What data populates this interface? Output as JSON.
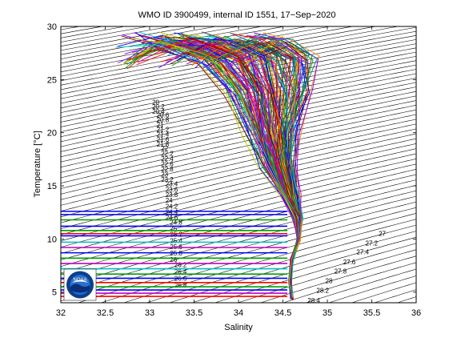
{
  "chart_data": {
    "type": "line",
    "title": "WMO ID 3900499, internal ID 1551, 17−Sep−2020",
    "xlabel": "Salinity",
    "ylabel": "Temperature [°C]",
    "xlim": [
      32,
      36
    ],
    "ylim": [
      4,
      30
    ],
    "xticks": [
      "32",
      "32.5",
      "33",
      "33.5",
      "34",
      "34.5",
      "35",
      "35.5",
      "36"
    ],
    "yticks": [
      "5",
      "10",
      "15",
      "20",
      "25",
      "30"
    ],
    "grid": false,
    "legend": "none",
    "contour_labels": [
      "20",
      "20.2",
      "20.4",
      "20.6",
      "20.8",
      "21",
      "21.2",
      "21.4",
      "21.6",
      "21.8",
      "22",
      "22.2",
      "22.4",
      "22.6",
      "22.8",
      "23",
      "23.2",
      "23.4",
      "23.6",
      "23.8",
      "24",
      "24.2",
      "24.4",
      "24.6",
      "24.8",
      "25",
      "25.2",
      "25.4",
      "25.6",
      "25.8",
      "26",
      "26.2",
      "26.4",
      "26.6",
      "26.8",
      "27",
      "27.2",
      "27.4",
      "27.6",
      "27.8",
      "28",
      "28.2",
      "28.4"
    ],
    "series_summary": {
      "profile_count": 150,
      "profile_colors": [
        "#0000ff",
        "#00a000",
        "#ff0000",
        "#00c0c0",
        "#c000c0",
        "#c0c000",
        "#404040",
        "#ff8000",
        "#8000ff",
        "#008080",
        "#800000"
      ],
      "surface_salinity_range": [
        32.8,
        35.3
      ],
      "surface_temperature_range": [
        25,
        29.5
      ],
      "core_profile": [
        {
          "s": 33.2,
          "t": 29.0
        },
        {
          "s": 33.6,
          "t": 28.5
        },
        {
          "s": 34.0,
          "t": 27.0
        },
        {
          "s": 34.2,
          "t": 24.0
        },
        {
          "s": 34.3,
          "t": 20.0
        },
        {
          "s": 34.4,
          "t": 17.0
        },
        {
          "s": 34.55,
          "t": 14.0
        },
        {
          "s": 34.65,
          "t": 12.0
        },
        {
          "s": 34.68,
          "t": 10.0
        },
        {
          "s": 34.6,
          "t": 8.0
        },
        {
          "s": 34.58,
          "t": 6.0
        },
        {
          "s": 34.6,
          "t": 4.5
        }
      ],
      "horizontal_lines": [
        {
          "t": 12.6,
          "color": "#0000ff"
        },
        {
          "t": 12.3,
          "color": "#0000ff"
        },
        {
          "t": 11.8,
          "color": "#00a000"
        },
        {
          "t": 11.2,
          "color": "#0000ff"
        },
        {
          "t": 10.8,
          "color": "#00a000"
        },
        {
          "t": 10.5,
          "color": "#ff0000"
        },
        {
          "t": 10.3,
          "color": "#0000ff"
        },
        {
          "t": 9.7,
          "color": "#00c0c0"
        },
        {
          "t": 9.2,
          "color": "#c000c0"
        },
        {
          "t": 8.7,
          "color": "#0000ff"
        },
        {
          "t": 8.2,
          "color": "#00a000"
        },
        {
          "t": 7.7,
          "color": "#c000c0"
        },
        {
          "t": 7.2,
          "color": "#00c0c0"
        },
        {
          "t": 6.7,
          "color": "#00a000"
        },
        {
          "t": 6.3,
          "color": "#0000ff"
        },
        {
          "t": 5.9,
          "color": "#ff0000"
        },
        {
          "t": 5.5,
          "color": "#00a000"
        },
        {
          "t": 5.2,
          "color": "#0000ff"
        },
        {
          "t": 4.9,
          "color": "#c000c0"
        },
        {
          "t": 4.6,
          "color": "#ff0000"
        }
      ]
    }
  },
  "logo": {
    "text": "NOAA",
    "colors": {
      "ring": "#0a3f8f",
      "sky": "#2a6fc9",
      "wave": "#0a2f7a",
      "bird": "#ffffff"
    }
  }
}
